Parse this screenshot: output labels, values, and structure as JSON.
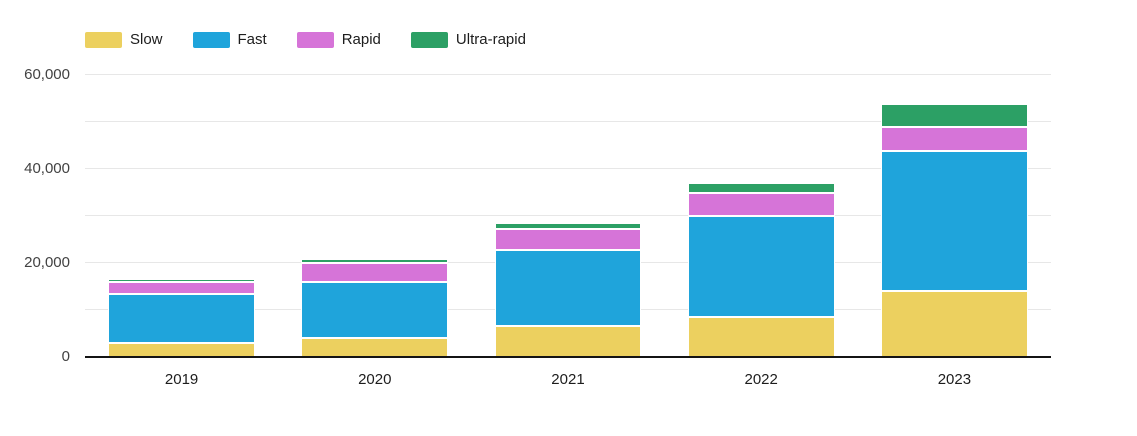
{
  "chart_data": {
    "type": "bar",
    "stacked": true,
    "title": "",
    "categories": [
      "2019",
      "2020",
      "2021",
      "2022",
      "2023"
    ],
    "series": [
      {
        "name": "Slow",
        "color": "#ECD05F",
        "values": [
          3000,
          4000,
          6600,
          8500,
          14000
        ]
      },
      {
        "name": "Fast",
        "color": "#1FA4DB",
        "values": [
          10500,
          12000,
          16200,
          21500,
          29800
        ]
      },
      {
        "name": "Rapid",
        "color": "#D674D8",
        "values": [
          2500,
          3900,
          4400,
          4900,
          5100
        ]
      },
      {
        "name": "Ultra-rapid",
        "color": "#2CA065",
        "values": [
          600,
          1000,
          1300,
          2200,
          5000
        ]
      }
    ],
    "totals": [
      16600,
      20900,
      28500,
      37100,
      53900
    ],
    "xlabel": "",
    "ylabel": "",
    "ylim": [
      0,
      60000
    ],
    "yticks": [
      {
        "value": 0,
        "label": "0"
      },
      {
        "value": 20000,
        "label": "20,000"
      },
      {
        "value": 40000,
        "label": "40,000"
      },
      {
        "value": 60000,
        "label": "60,000"
      }
    ],
    "grid": true,
    "grid_step": 10000,
    "legend_position": "top-left",
    "legend_labels": [
      "Slow",
      "Fast",
      "Rapid",
      "Ultra-rapid"
    ]
  },
  "colors": {
    "background": "#ffffff",
    "gridline": "#e7e7e7",
    "axis_line": "#141414",
    "y_tick_label": "#424242",
    "x_tick_label": "#1d1d1d",
    "segment_border": "#ffffff"
  }
}
